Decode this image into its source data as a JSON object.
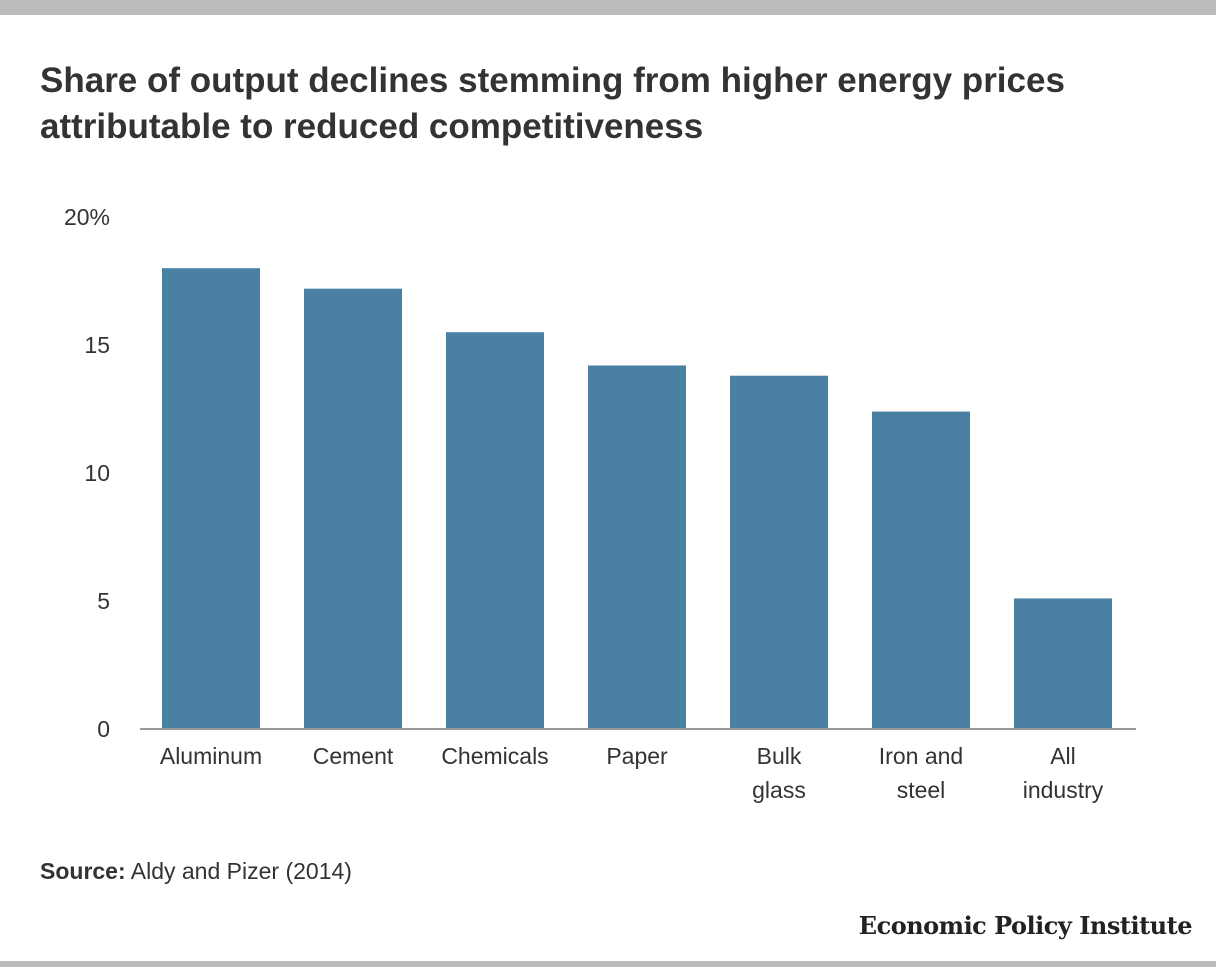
{
  "chart_data": {
    "type": "bar",
    "title": "Share of output declines stemming from higher energy prices attributable to reduced competitiveness",
    "xlabel": "",
    "ylabel": "",
    "categories": [
      [
        "Aluminum"
      ],
      [
        "Cement"
      ],
      [
        "Chemicals"
      ],
      [
        "Paper"
      ],
      [
        "Bulk",
        "glass"
      ],
      [
        "Iron and",
        "steel"
      ],
      [
        "All",
        "industry"
      ]
    ],
    "values": [
      18.0,
      17.2,
      15.5,
      14.2,
      13.8,
      12.4,
      5.1
    ],
    "ylim": [
      0,
      20
    ],
    "yticks": [
      0,
      5,
      10,
      15,
      20
    ],
    "ytick_labels": [
      "0",
      "5",
      "10",
      "15",
      "20%"
    ],
    "grid": false,
    "bar_color": "#4a80a2"
  },
  "source": {
    "label": "Source:",
    "text": " Aldy and Pizer (2014)"
  },
  "branding": {
    "logo_text": "Economic Policy Institute"
  }
}
